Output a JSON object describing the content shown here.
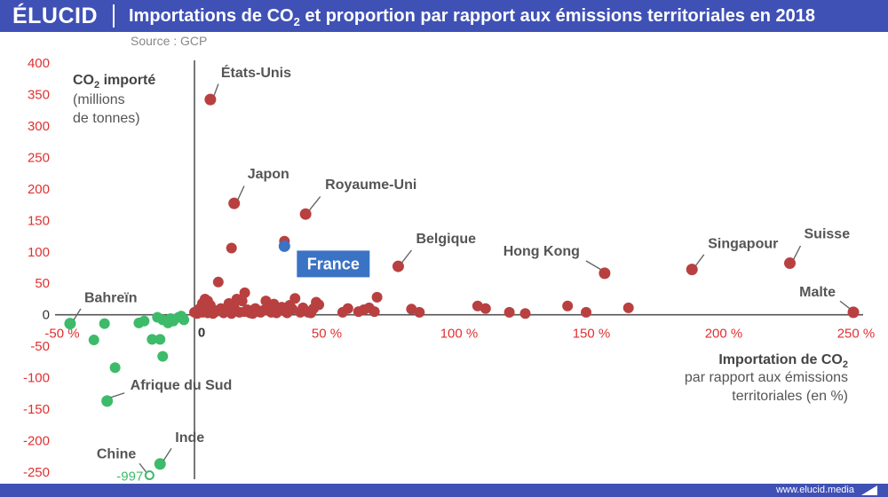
{
  "header": {
    "brand": "ÉLUCID",
    "title_pre": "Importations de CO",
    "title_sub": "2",
    "title_post": " et proportion par rapport aux émissions territoriales en 2018",
    "source": "Source : GCP"
  },
  "footer": {
    "website": "www.elucid.media"
  },
  "colors": {
    "header": "#3f51b5",
    "positive": "#b94040",
    "negative": "#3dbb6a",
    "france": "#3a73c4",
    "axis_ticks": "#e03030",
    "label": "#555555"
  },
  "chart_data": {
    "type": "scatter",
    "xlim": [
      -50,
      250
    ],
    "ylim": [
      -250,
      400
    ],
    "x_ticks": [
      {
        "v": -50,
        "label": "-50 %"
      },
      {
        "v": 0,
        "label": "0"
      },
      {
        "v": 50,
        "label": "50 %"
      },
      {
        "v": 100,
        "label": "100 %"
      },
      {
        "v": 150,
        "label": "150 %"
      },
      {
        "v": 200,
        "label": "200 %"
      },
      {
        "v": 250,
        "label": "250 %"
      }
    ],
    "y_ticks": [
      {
        "v": 400,
        "label": "400"
      },
      {
        "v": 350,
        "label": "350"
      },
      {
        "v": 300,
        "label": "300"
      },
      {
        "v": 250,
        "label": "250"
      },
      {
        "v": 200,
        "label": "200"
      },
      {
        "v": 150,
        "label": "150"
      },
      {
        "v": 100,
        "label": "100"
      },
      {
        "v": 50,
        "label": "50"
      },
      {
        "v": 0,
        "label": "0"
      },
      {
        "v": -50,
        "label": "-50"
      },
      {
        "v": -100,
        "label": "-100"
      },
      {
        "v": -150,
        "label": "-150"
      },
      {
        "v": -200,
        "label": "-200"
      },
      {
        "v": -250,
        "label": "-250"
      }
    ],
    "ylabel_main": "CO",
    "ylabel_sub": "2",
    "ylabel_main_post": " importé",
    "ylabel_lines": [
      "(millions",
      "de tonnes)"
    ],
    "xlabel_main": "Importation de CO",
    "xlabel_sub": "2",
    "xlabel_lines": [
      "par rapport aux émissions",
      "territoriales (en %)"
    ],
    "labeled_points": [
      {
        "name": "États-Unis",
        "x": 6,
        "y": 342,
        "group": "positive"
      },
      {
        "name": "Japon",
        "x": 15,
        "y": 177,
        "group": "positive"
      },
      {
        "name": "Royaume-Uni",
        "x": 42,
        "y": 160,
        "group": "positive"
      },
      {
        "name": "France",
        "x": 34,
        "y": 109,
        "group": "france"
      },
      {
        "name": "Belgique",
        "x": 77,
        "y": 77,
        "group": "positive"
      },
      {
        "name": "Hong Kong",
        "x": 155,
        "y": 66,
        "group": "positive"
      },
      {
        "name": "Singapour",
        "x": 188,
        "y": 72,
        "group": "positive"
      },
      {
        "name": "Suisse",
        "x": 225,
        "y": 82,
        "group": "positive"
      },
      {
        "name": "Malte",
        "x": 249,
        "y": 4,
        "group": "positive"
      },
      {
        "name": "Bahreïn",
        "x": -47,
        "y": -14,
        "group": "negative"
      },
      {
        "name": "Afrique du Sud",
        "x": -33,
        "y": -137,
        "group": "negative"
      },
      {
        "name": "Inde",
        "x": -13,
        "y": -237,
        "group": "negative"
      },
      {
        "name": "Chine",
        "x": -17,
        "y": -255,
        "value_label": "-997",
        "group": "negative_hollow"
      }
    ],
    "positive_points": [
      [
        2,
        10
      ],
      [
        3,
        4
      ],
      [
        3,
        18
      ],
      [
        4,
        25
      ],
      [
        5,
        22
      ],
      [
        5,
        3
      ],
      [
        6,
        15
      ],
      [
        7,
        8
      ],
      [
        7,
        2
      ],
      [
        8,
        5
      ],
      [
        9,
        52
      ],
      [
        10,
        10
      ],
      [
        11,
        3
      ],
      [
        12,
        7
      ],
      [
        13,
        18
      ],
      [
        14,
        106
      ],
      [
        14,
        2
      ],
      [
        15,
        11
      ],
      [
        16,
        25
      ],
      [
        17,
        4
      ],
      [
        18,
        22
      ],
      [
        19,
        35
      ],
      [
        19,
        5
      ],
      [
        20,
        8
      ],
      [
        21,
        3
      ],
      [
        22,
        2
      ],
      [
        23,
        10
      ],
      [
        24,
        5
      ],
      [
        25,
        4
      ],
      [
        26,
        7
      ],
      [
        27,
        22
      ],
      [
        28,
        10
      ],
      [
        29,
        4
      ],
      [
        30,
        17
      ],
      [
        31,
        3
      ],
      [
        32,
        8
      ],
      [
        33,
        12
      ],
      [
        34,
        117
      ],
      [
        34,
        6
      ],
      [
        35,
        3
      ],
      [
        36,
        15
      ],
      [
        37,
        9
      ],
      [
        38,
        26
      ],
      [
        40,
        4
      ],
      [
        41,
        11
      ],
      [
        42,
        6
      ],
      [
        43,
        4
      ],
      [
        44,
        3
      ],
      [
        45,
        10
      ],
      [
        46,
        20
      ],
      [
        47,
        16
      ],
      [
        56,
        4
      ],
      [
        58,
        10
      ],
      [
        62,
        5
      ],
      [
        64,
        8
      ],
      [
        66,
        11
      ],
      [
        68,
        5
      ],
      [
        69,
        28
      ],
      [
        82,
        9
      ],
      [
        85,
        4
      ],
      [
        107,
        14
      ],
      [
        110,
        10
      ],
      [
        119,
        4
      ],
      [
        125,
        2
      ],
      [
        141,
        14
      ],
      [
        148,
        4
      ],
      [
        164,
        11
      ],
      [
        0,
        4
      ],
      [
        1,
        2
      ]
    ],
    "negative_points": [
      [
        -38,
        -40
      ],
      [
        -34,
        -14
      ],
      [
        -30,
        -84
      ],
      [
        -21,
        -13
      ],
      [
        -19,
        -10
      ],
      [
        -16,
        -39
      ],
      [
        -14,
        -4
      ],
      [
        -13,
        -39
      ],
      [
        -12,
        -66
      ],
      [
        -12,
        -8
      ],
      [
        -10,
        -13
      ],
      [
        -9,
        -6
      ],
      [
        -8,
        -10
      ],
      [
        -6,
        -4
      ],
      [
        -5,
        -2
      ],
      [
        -4,
        -8
      ]
    ]
  }
}
